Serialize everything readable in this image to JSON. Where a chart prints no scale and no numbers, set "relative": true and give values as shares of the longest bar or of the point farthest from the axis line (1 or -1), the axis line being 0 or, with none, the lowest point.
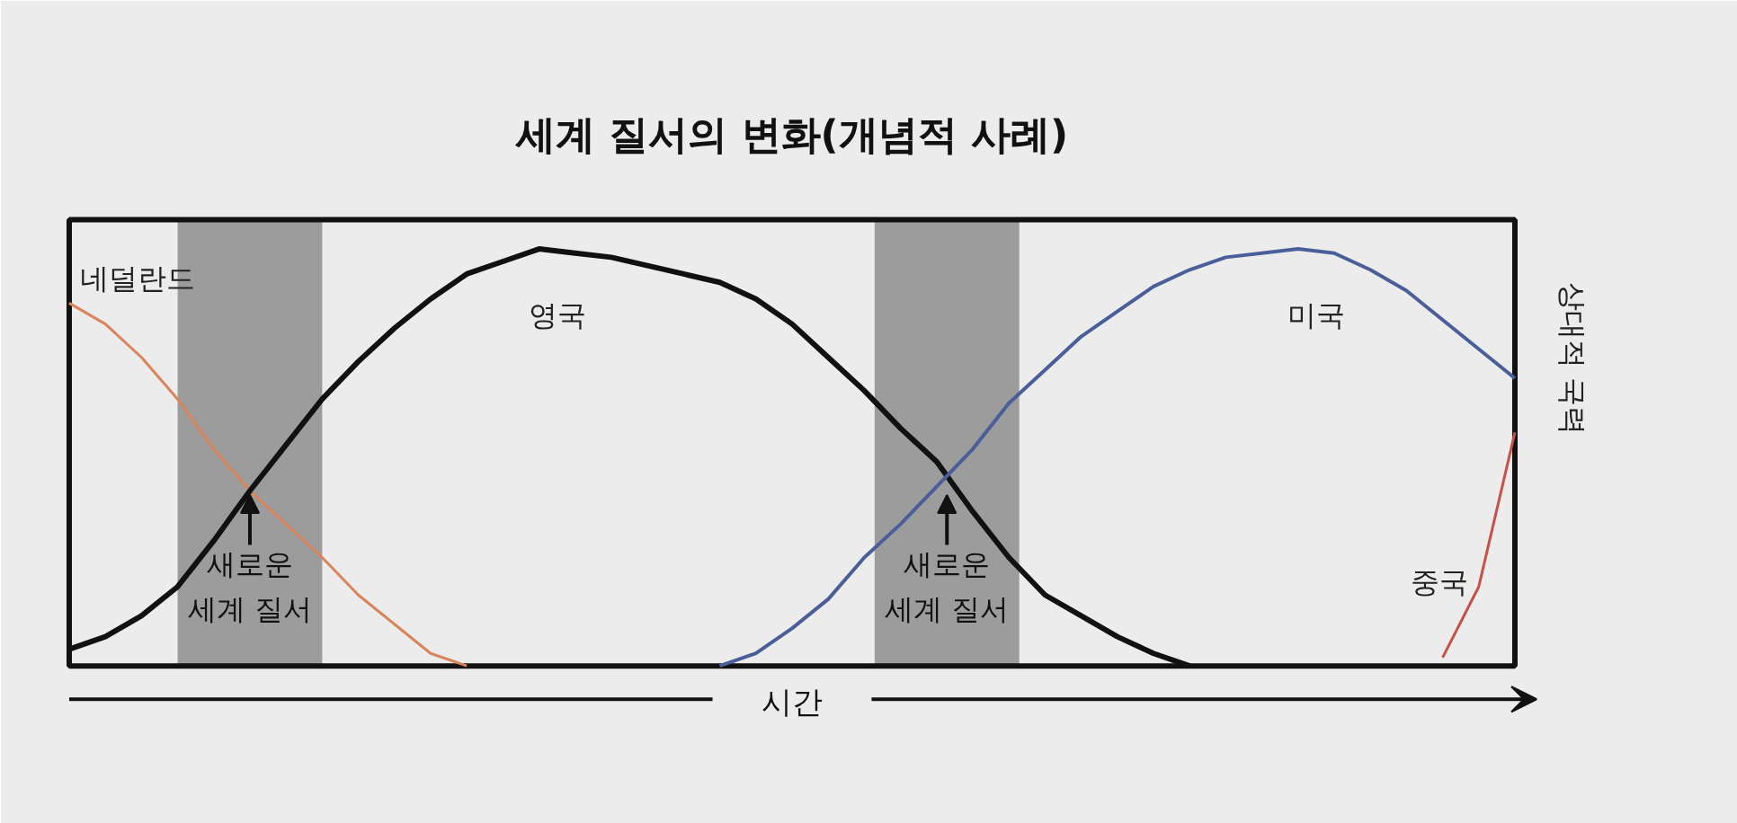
{
  "chart_data": {
    "type": "line",
    "relative": true,
    "title": "세계 질서의 변화(개념적 사례)",
    "xlabel": "시간",
    "ylabel": "상대적 국력",
    "categories": [
      null,
      null,
      null,
      null,
      null,
      null,
      null,
      null,
      null,
      null,
      null,
      null,
      null,
      null,
      null,
      null,
      null,
      null,
      null,
      null,
      null,
      null,
      null,
      null,
      null,
      null,
      null,
      null,
      null,
      null,
      null,
      null,
      null,
      null,
      null,
      null,
      null,
      null,
      null,
      null,
      null
    ],
    "series": [
      {
        "name": "네덜란드",
        "color": "#d9845a",
        "values": [
          0.87,
          0.82,
          0.74,
          0.64,
          0.52,
          0.42,
          0.34,
          0.26,
          0.17,
          0.1,
          0.03,
          0,
          null,
          null,
          null,
          null,
          null,
          null,
          null,
          null,
          null,
          null,
          null,
          null,
          null,
          null,
          null,
          null,
          null,
          null,
          null,
          null,
          null,
          null,
          null,
          null,
          null,
          null,
          null,
          null,
          null
        ]
      },
      {
        "name": "영국",
        "color": "#111111",
        "values": [
          0.04,
          0.07,
          0.12,
          0.19,
          0.3,
          0.42,
          0.53,
          0.64,
          0.73,
          0.81,
          0.88,
          0.94,
          0.97,
          1.0,
          0.99,
          0.98,
          0.96,
          0.94,
          0.92,
          0.88,
          0.82,
          0.74,
          0.66,
          0.57,
          0.49,
          0.37,
          0.26,
          0.17,
          0.12,
          0.07,
          0.03,
          0,
          null,
          null,
          null,
          null,
          null,
          null,
          null,
          null,
          null
        ]
      },
      {
        "name": "미국",
        "color": "#4a5e9a",
        "values": [
          null,
          null,
          null,
          null,
          null,
          null,
          null,
          null,
          null,
          null,
          null,
          null,
          null,
          null,
          null,
          null,
          null,
          null,
          0,
          0.03,
          0.09,
          0.16,
          0.26,
          0.34,
          0.43,
          0.52,
          0.63,
          0.71,
          0.79,
          0.85,
          0.91,
          0.95,
          0.98,
          0.99,
          1.0,
          0.99,
          0.95,
          0.9,
          0.83,
          0.76,
          0.69
        ]
      },
      {
        "name": "중국",
        "color": "#c8504a",
        "values": [
          null,
          null,
          null,
          null,
          null,
          null,
          null,
          null,
          null,
          null,
          null,
          null,
          null,
          null,
          null,
          null,
          null,
          null,
          null,
          null,
          null,
          null,
          null,
          null,
          null,
          null,
          null,
          null,
          null,
          null,
          null,
          null,
          null,
          null,
          null,
          null,
          null,
          null,
          0.02,
          0.19,
          0.56
        ]
      }
    ],
    "annotations": [
      "새로운 세계 질서",
      "새로운 세계 질서"
    ]
  }
}
